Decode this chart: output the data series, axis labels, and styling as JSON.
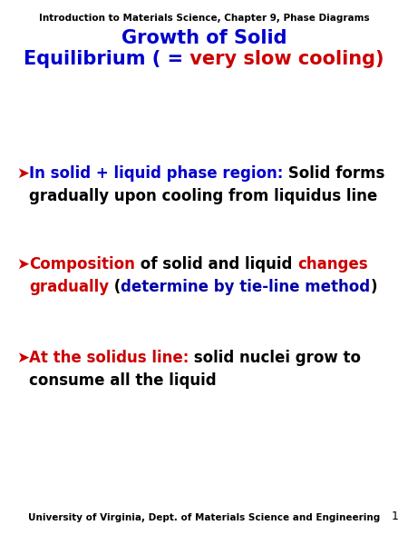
{
  "header": "Introduction to Materials Science, Chapter 9, Phase Diagrams",
  "title_line1": "Growth of Solid",
  "title_line2_blue": "Equilibrium ( =",
  "title_line2_red": " very slow cooling)",
  "footer": "University of Virginia, Dept. of Materials Science and Engineering",
  "page_num": "1",
  "bg_color": "#ffffff",
  "blue": "#0000CC",
  "red": "#CC0000",
  "darkblue": "#0000AA",
  "black": "#000000",
  "font_size_header": 7.5,
  "font_size_title": 15,
  "font_size_bullet": 12,
  "font_size_footer": 7.5,
  "font_size_pagenum": 9
}
